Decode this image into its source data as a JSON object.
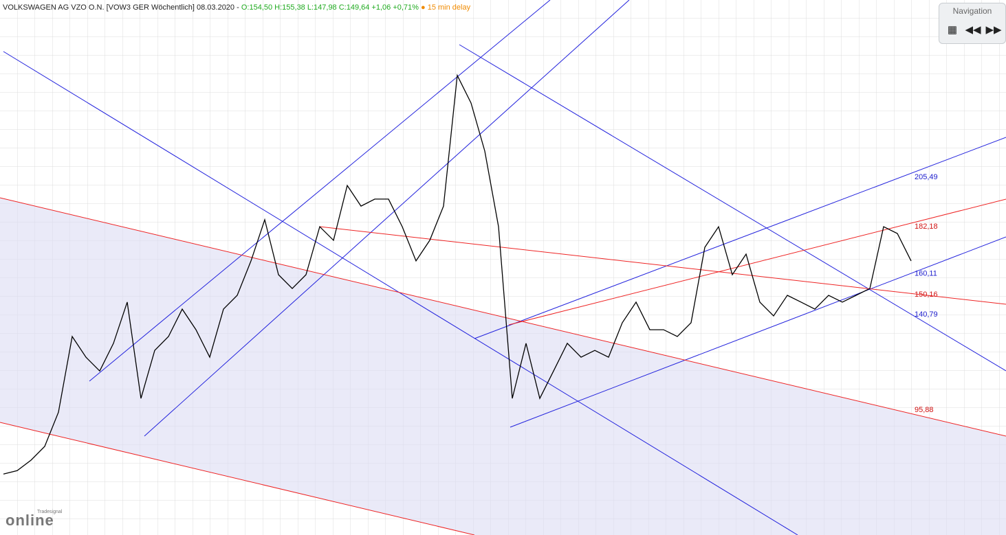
{
  "header": {
    "title": "VOLKSWAGEN AG VZO O.N. [VOW3 GER Wöchentlich] 08.03.2020 -",
    "quote": "O:154,50 H:155,38 L:147,98 C:149,64 +1,06 +0,71%",
    "delay": "● 15 min delay"
  },
  "navigation": {
    "title": "Navigation"
  },
  "logo": {
    "brand": "Tradesignal",
    "name": "online"
  },
  "chart_data": {
    "type": "line",
    "color": "#000000",
    "ylim": [
      37.1,
      288.9
    ],
    "grid": true,
    "values": [
      65.8,
      67.4,
      72.3,
      78.8,
      94.9,
      130.5,
      120.8,
      114.3,
      127.3,
      146.7,
      101.4,
      124.0,
      130.5,
      143.4,
      133.7,
      120.8,
      143.4,
      149.9,
      166.1,
      185.5,
      159.6,
      153.1,
      159.6,
      182.2,
      175.8,
      201.6,
      191.9,
      195.2,
      195.2,
      182.2,
      166.1,
      175.8,
      191.9,
      253.4,
      240.4,
      217.8,
      182.2,
      101.4,
      127.3,
      101.4,
      114.3,
      127.3,
      120.8,
      124.0,
      120.8,
      137.0,
      146.7,
      133.7,
      133.7,
      130.5,
      137.0,
      172.5,
      182.2,
      159.6,
      169.3,
      146.7,
      140.2,
      149.9,
      146.7,
      143.4,
      149.9,
      146.7,
      149.9,
      153.1,
      182.2,
      179.0,
      166.1
    ],
    "level_labels": [
      {
        "value": 205.49,
        "label": "205,49",
        "color": "#1a1acc"
      },
      {
        "value": 182.18,
        "label": "182,18",
        "color": "#d01010"
      },
      {
        "value": 160.11,
        "label": "160,11",
        "color": "#1a1acc"
      },
      {
        "value": 150.16,
        "label": "150,16",
        "color": "#d01010"
      },
      {
        "value": 140.79,
        "label": "140,79",
        "color": "#1a1acc"
      },
      {
        "value": 95.88,
        "label": "95,88",
        "color": "#d01010"
      }
    ]
  }
}
